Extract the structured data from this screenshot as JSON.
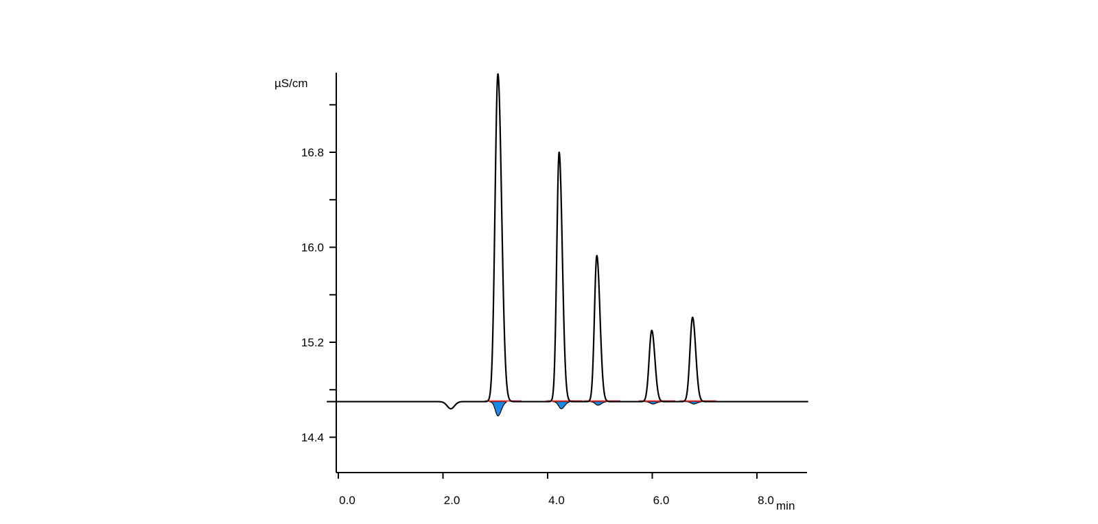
{
  "chart_data": {
    "type": "line",
    "title": "",
    "xlabel": "min",
    "ylabel": "µS/cm",
    "xlim": [
      0,
      9.0
    ],
    "ylim": [
      14.1,
      17.55
    ],
    "x_ticks": [
      "0.0",
      "2.0",
      "4.0",
      "6.0",
      "8.0"
    ],
    "x_tick_values": [
      0,
      2,
      4,
      6,
      8
    ],
    "y_ticks": [
      "14.4",
      "15.2",
      "16.0",
      "16.8"
    ],
    "y_tick_values": [
      14.4,
      15.2,
      16.0,
      16.8
    ],
    "y_minor_tick_values": [
      14.8,
      15.6,
      16.4,
      17.2
    ],
    "baseline": 14.7,
    "dip": {
      "x": 2.15,
      "depth": 0.06,
      "width": 0.07
    },
    "peaks": [
      {
        "rt": 3.05,
        "height": 17.46,
        "width": 0.055,
        "tail": 0.07
      },
      {
        "rt": 4.22,
        "height": 16.8,
        "width": 0.045,
        "tail": 0.06
      },
      {
        "rt": 4.94,
        "height": 15.93,
        "width": 0.045,
        "tail": 0.06
      },
      {
        "rt": 5.99,
        "height": 15.3,
        "width": 0.05,
        "tail": 0.06
      },
      {
        "rt": 6.77,
        "height": 15.41,
        "width": 0.05,
        "tail": 0.06
      }
    ],
    "negative_areas": [
      {
        "rt": 3.05,
        "depth": 0.12
      },
      {
        "rt": 4.26,
        "depth": 0.06
      },
      {
        "rt": 4.96,
        "depth": 0.03
      },
      {
        "rt": 6.01,
        "depth": 0.02
      },
      {
        "rt": 6.79,
        "depth": 0.02
      }
    ],
    "grid": false,
    "trace_color": "#000000",
    "fill_color": "#1e88e5",
    "baseline_marker_color": "#e53935"
  }
}
